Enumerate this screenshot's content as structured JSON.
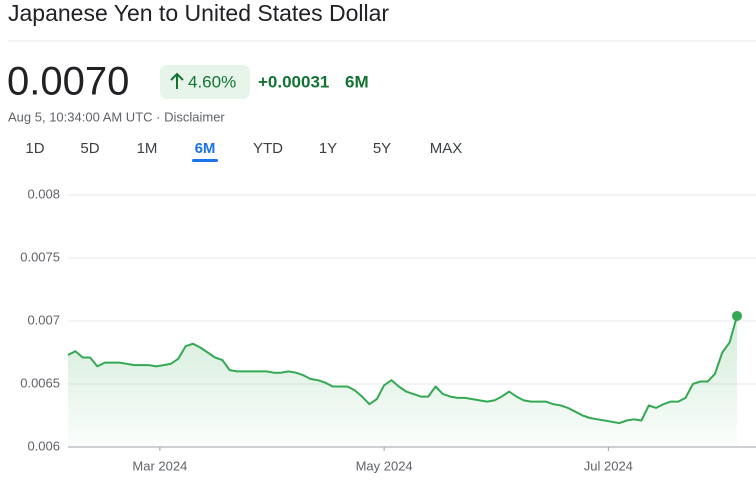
{
  "header": {
    "title": "Japanese Yen to United States Dollar",
    "price": "0.0070",
    "change_percent": "4.60%",
    "change": "+0.00031",
    "period": "6M",
    "subtitle": "Aug 5, 10:34:00 AM UTC · Disclaimer"
  },
  "tabs": [
    "1D",
    "5D",
    "1M",
    "6M",
    "YTD",
    "1Y",
    "5Y",
    "MAX"
  ],
  "selected_tab": 3,
  "chart_data": {
    "type": "line",
    "series": [
      {
        "name": "JPY/USD",
        "color": "#34a853",
        "values": [
          0.00673,
          0.00676,
          0.00671,
          0.00671,
          0.00664,
          0.00667,
          0.00667,
          0.00667,
          0.00666,
          0.00665,
          0.00665,
          0.00665,
          0.00664,
          0.00665,
          0.00666,
          0.0067,
          0.0068,
          0.00682,
          0.00679,
          0.00675,
          0.00671,
          0.00669,
          0.00661,
          0.0066,
          0.0066,
          0.0066,
          0.0066,
          0.0066,
          0.00659,
          0.00659,
          0.0066,
          0.00659,
          0.00657,
          0.00654,
          0.00653,
          0.00651,
          0.00648,
          0.00648,
          0.00648,
          0.00645,
          0.0064,
          0.00634,
          0.00638,
          0.00649,
          0.00653,
          0.00648,
          0.00644,
          0.00642,
          0.0064,
          0.0064,
          0.00648,
          0.00642,
          0.0064,
          0.00639,
          0.00639,
          0.00638,
          0.00637,
          0.00636,
          0.00637,
          0.0064,
          0.00644,
          0.0064,
          0.00637,
          0.00636,
          0.00636,
          0.00636,
          0.00634,
          0.00633,
          0.00631,
          0.00628,
          0.00625,
          0.00623,
          0.00622,
          0.00621,
          0.0062,
          0.00619,
          0.00621,
          0.00622,
          0.00621,
          0.00633,
          0.00631,
          0.00634,
          0.00636,
          0.00636,
          0.00639,
          0.0065,
          0.00652,
          0.00652,
          0.00658,
          0.00675,
          0.00683,
          0.00704
        ]
      }
    ],
    "xlim": [
      0,
      91
    ],
    "xticks": [
      {
        "value": 12.5,
        "label": "Mar 2024"
      },
      {
        "value": 43,
        "label": "May 2024"
      },
      {
        "value": 73.5,
        "label": "Jul 2024"
      }
    ],
    "ylim": [
      0.006,
      0.008
    ],
    "yticks": [
      0.008,
      0.0075,
      0.007,
      0.0065,
      0.006
    ],
    "grid": true
  }
}
